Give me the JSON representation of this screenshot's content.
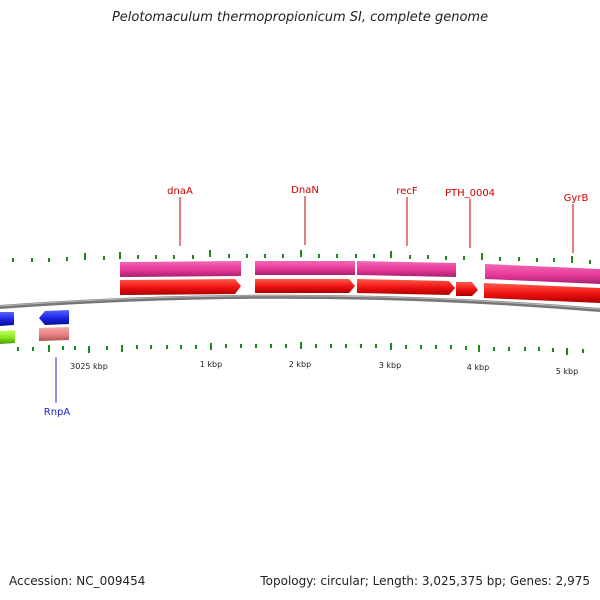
{
  "title": "Pelotomaculum thermopropionicum SI, complete genome",
  "accession": "Accession: NC_009454",
  "summary": "Topology: circular; Length: 3,025,375 bp; Genes: 2,975",
  "colors": {
    "outer_feature": "#e8389a",
    "cds": "#ee1010",
    "reverse_cds": "#1a22e6",
    "rna": "#88e41c",
    "misc": "#e88080",
    "tick": "#1a8a1a",
    "label_red": "#cc0000",
    "label_blue": "#1a22cc",
    "backbone": "#888888"
  },
  "gene_labels": [
    "dnaA",
    "DnaN",
    "recF",
    "PTH_0004",
    "GyrB",
    "RnpA"
  ],
  "scale_labels": [
    "3025 kbp",
    "1 kbp",
    "2 kbp",
    "3 kbp",
    "4 kbp",
    "5 kbp"
  ]
}
